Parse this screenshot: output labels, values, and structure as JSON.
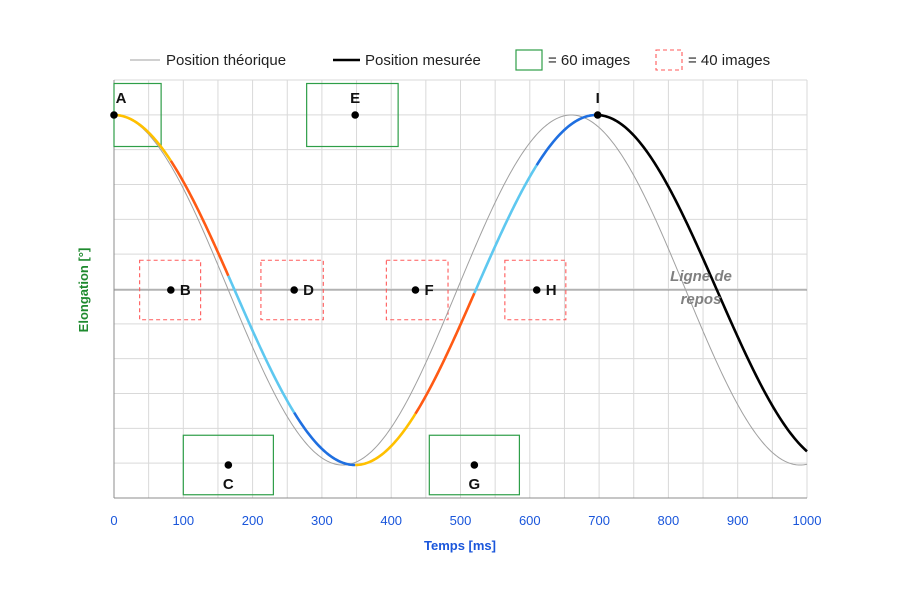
{
  "chart_data": {
    "type": "line",
    "xlabel": "Temps [ms]",
    "ylabel": "Elongation [°]",
    "xlim": [
      0,
      1000
    ],
    "ylim": [
      -1.0,
      1.0
    ],
    "xticks": [
      "0",
      "100",
      "200",
      "300",
      "400",
      "500",
      "600",
      "700",
      "800",
      "900",
      "1000"
    ],
    "grid": true,
    "legend": {
      "placement": "top",
      "entries": [
        {
          "name": "Position théorique",
          "color": "#a0a0a0",
          "style": "thin-line"
        },
        {
          "name": "Position mesurée",
          "color": "#000000",
          "style": "thick-line"
        },
        {
          "name": "= 60 images",
          "color": "#2e9e48",
          "style": "solid-box"
        },
        {
          "name": "= 40 images",
          "color": "#ff5a5a",
          "style": "dashed-box"
        }
      ]
    },
    "series": [
      {
        "name": "Position théorique",
        "color": "#a0a0a0",
        "amplitude": 1.0,
        "period_ms": 660,
        "phase_ms": 0
      },
      {
        "name": "Position mesurée",
        "color": "#000000",
        "amplitude": 1.0,
        "period_ms": 696,
        "phase_ms": 0
      }
    ],
    "measured_segments": [
      {
        "from": "A",
        "to": "B",
        "color": "#ffc000"
      },
      {
        "from": "B",
        "to": "C",
        "color": "#ff5a14"
      },
      {
        "from": "C",
        "to": "D",
        "color": "#5ec8f0"
      },
      {
        "from": "D",
        "to": "E",
        "color": "#1f6fe0"
      },
      {
        "from": "E",
        "to": "F",
        "color": "#ffc000"
      },
      {
        "from": "F",
        "to": "G",
        "color": "#ff5a14"
      },
      {
        "from": "G",
        "to": "H",
        "color": "#5ec8f0"
      },
      {
        "from": "H",
        "to": "I",
        "color": "#1f6fe0"
      },
      {
        "from": "I",
        "to": "end",
        "color": "#000000"
      }
    ],
    "points": [
      {
        "label": "A",
        "x": 0,
        "y": 1.0
      },
      {
        "label": "B",
        "x": 82,
        "y": 0.0
      },
      {
        "label": "C",
        "x": 165,
        "y": -1.0
      },
      {
        "label": "D",
        "x": 260,
        "y": 0.0
      },
      {
        "label": "E",
        "x": 348,
        "y": 1.0
      },
      {
        "label": "F",
        "x": 435,
        "y": 0.0
      },
      {
        "label": "G",
        "x": 520,
        "y": -1.0
      },
      {
        "label": "H",
        "x": 610,
        "y": 0.0
      },
      {
        "label": "I",
        "x": 698,
        "y": 1.0
      }
    ],
    "boxes": [
      {
        "kind": "60",
        "x": [
          0,
          68
        ],
        "y": [
          0.82,
          1.18
        ]
      },
      {
        "kind": "40",
        "x": [
          37,
          125
        ],
        "y": [
          -0.17,
          0.17
        ]
      },
      {
        "kind": "60",
        "x": [
          100,
          230
        ],
        "y": [
          -1.17,
          -0.83
        ]
      },
      {
        "kind": "40",
        "x": [
          212,
          302
        ],
        "y": [
          -0.17,
          0.17
        ]
      },
      {
        "kind": "60",
        "x": [
          278,
          410
        ],
        "y": [
          0.82,
          1.18
        ]
      },
      {
        "kind": "40",
        "x": [
          393,
          482
        ],
        "y": [
          -0.17,
          0.17
        ]
      },
      {
        "kind": "60",
        "x": [
          455,
          585
        ],
        "y": [
          -1.17,
          -0.83
        ]
      },
      {
        "kind": "40",
        "x": [
          564,
          652
        ],
        "y": [
          -0.17,
          0.17
        ]
      }
    ],
    "annotation": {
      "text_line1": "Ligne de",
      "text_line2": "repos",
      "x": 880,
      "y": 0.0
    }
  }
}
